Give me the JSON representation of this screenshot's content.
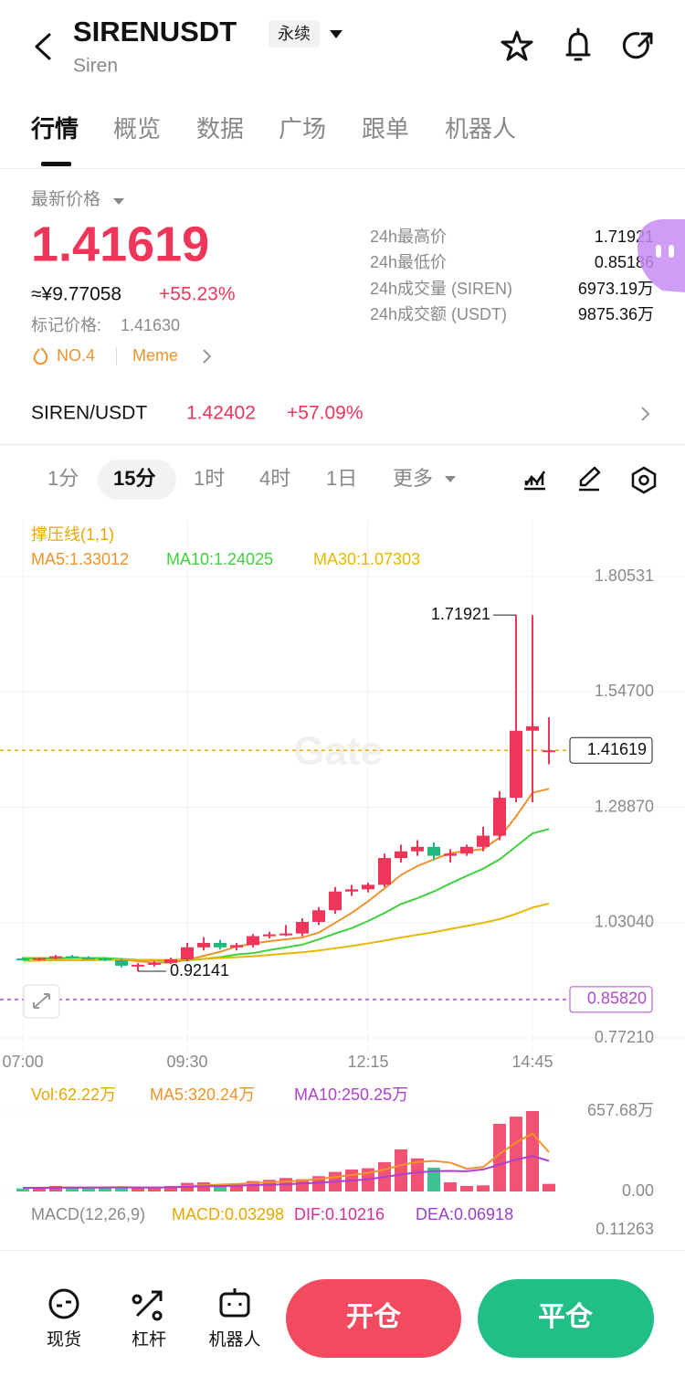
{
  "header": {
    "title": "SIRENUSDT",
    "badge": "永续",
    "subtitle": "Siren"
  },
  "tabs": [
    "行情",
    "概览",
    "数据",
    "广场",
    "跟单",
    "机器人"
  ],
  "price": {
    "label": "最新价格",
    "last": "1.41619",
    "cny": "≈¥9.77058",
    "change": "+55.23%",
    "mark_label": "标记价格:",
    "mark": "1.41630",
    "rank": "NO.4",
    "tag": "Meme"
  },
  "stats": [
    {
      "label": "24h最高价",
      "value": "1.71921"
    },
    {
      "label": "24h最低价",
      "value": "0.85186"
    },
    {
      "label": "24h成交量 (SIREN)",
      "value": "6973.19万"
    },
    {
      "label": "24h成交额 (USDT)",
      "value": "9875.36万"
    }
  ],
  "spot": {
    "pair": "SIREN/USDT",
    "price": "1.42402",
    "change": "+57.09%"
  },
  "intervals": [
    "1分",
    "15分",
    "1时",
    "4时",
    "1日",
    "更多"
  ],
  "chart_data": {
    "type": "candlestick",
    "indicator": "撑压线(1,1)",
    "watermark": "Gate",
    "categories": [
      "07:00",
      null,
      null,
      null,
      null,
      null,
      null,
      null,
      null,
      null,
      "09:30",
      null,
      null,
      null,
      null,
      null,
      null,
      null,
      null,
      null,
      null,
      "12:15",
      null,
      null,
      null,
      null,
      null,
      null,
      null,
      null,
      null,
      "14:45",
      null
    ],
    "open": [
      0.95,
      0.948,
      0.951,
      0.955,
      0.952,
      0.95,
      0.946,
      0.934,
      0.936,
      0.94,
      0.948,
      0.975,
      0.985,
      0.975,
      0.98,
      1.0,
      1.004,
      1.006,
      1.032,
      1.058,
      1.1,
      1.105,
      1.115,
      1.175,
      1.19,
      1.2,
      1.18,
      1.185,
      1.2,
      1.225,
      1.31,
      1.46,
      1.415
    ],
    "high": [
      0.953,
      0.952,
      0.958,
      0.958,
      0.955,
      0.953,
      0.949,
      0.94,
      0.944,
      0.952,
      0.985,
      0.998,
      0.992,
      0.985,
      1.005,
      1.01,
      1.025,
      1.04,
      1.065,
      1.11,
      1.115,
      1.12,
      1.185,
      1.205,
      1.215,
      1.21,
      1.195,
      1.205,
      1.245,
      1.325,
      1.71921,
      1.71921,
      1.49
    ],
    "low": [
      0.946,
      0.945,
      0.948,
      0.95,
      0.948,
      0.944,
      0.93,
      0.92141,
      0.932,
      0.938,
      0.944,
      0.968,
      0.97,
      0.968,
      0.975,
      0.995,
      1.0,
      1.0,
      1.025,
      1.05,
      1.09,
      1.098,
      1.11,
      1.165,
      1.18,
      1.17,
      1.165,
      1.18,
      1.19,
      1.215,
      1.3,
      1.3,
      1.385
    ],
    "close": [
      0.948,
      0.951,
      0.955,
      0.952,
      0.95,
      0.946,
      0.934,
      0.936,
      0.94,
      0.948,
      0.975,
      0.985,
      0.975,
      0.98,
      1.0,
      1.004,
      1.006,
      1.032,
      1.058,
      1.1,
      1.105,
      1.115,
      1.175,
      1.19,
      1.2,
      1.18,
      1.185,
      1.2,
      1.225,
      1.31,
      1.46,
      1.47,
      1.41619
    ],
    "up_color": "#f0355a",
    "down_color": "#1fb980",
    "series": [
      {
        "name": "MA5:1.33012",
        "color": "#f0932b",
        "values": [
          0.951,
          0.951,
          0.951,
          0.952,
          0.951,
          0.95,
          0.947,
          0.944,
          0.941,
          0.941,
          0.947,
          0.956,
          0.965,
          0.977,
          0.983,
          0.989,
          0.993,
          0.997,
          1.008,
          1.03,
          1.052,
          1.078,
          1.107,
          1.137,
          1.157,
          1.172,
          1.186,
          1.191,
          1.195,
          1.221,
          1.268,
          1.321,
          1.33
        ]
      },
      {
        "name": "MA10:1.24025",
        "color": "#3fd13f",
        "values": [
          0.95,
          0.95,
          0.95,
          0.951,
          0.951,
          0.951,
          0.949,
          0.947,
          0.946,
          0.945,
          0.946,
          0.949,
          0.953,
          0.959,
          0.962,
          0.969,
          0.975,
          0.981,
          0.993,
          1.006,
          1.018,
          1.034,
          1.052,
          1.072,
          1.085,
          1.1,
          1.118,
          1.135,
          1.151,
          1.172,
          1.201,
          1.23,
          1.24
        ]
      },
      {
        "name": "MA30:1.07303",
        "color": "#e6b800",
        "values": [
          0.945,
          0.945,
          0.946,
          0.946,
          0.946,
          0.947,
          0.947,
          0.947,
          0.947,
          0.947,
          0.948,
          0.949,
          0.951,
          0.953,
          0.955,
          0.958,
          0.961,
          0.964,
          0.968,
          0.973,
          0.978,
          0.984,
          0.99,
          0.997,
          1.003,
          1.009,
          1.016,
          1.023,
          1.03,
          1.038,
          1.05,
          1.064,
          1.073
        ]
      }
    ],
    "ylim": [
      0.7721,
      1.80531
    ],
    "yticks": [
      1.80531,
      {
        "value": 1.547,
        "label": "1.54700"
      },
      {
        "value": 1.2887,
        "label": "1.28870"
      },
      {
        "value": 1.0304,
        "label": "1.03040"
      },
      {
        "value": 0.7721,
        "label": "0.77210"
      }
    ],
    "grid": true,
    "annotations": [
      {
        "value": 1.71921,
        "label": "1.71921"
      },
      {
        "value": 0.92141,
        "label": "0.92141"
      }
    ],
    "price_lines": [
      {
        "value": 1.41619,
        "label": "1.41619",
        "color": "#e8b500"
      },
      {
        "value": 0.8582,
        "label": "0.85820",
        "color": "#b04ad0"
      }
    ]
  },
  "volume": {
    "label": "Vol:62.22万",
    "values": [
      25,
      30,
      45,
      35,
      30,
      28,
      40,
      30,
      32,
      45,
      70,
      75,
      60,
      55,
      85,
      95,
      110,
      100,
      125,
      160,
      180,
      190,
      240,
      344,
      270,
      195,
      75,
      45,
      50,
      553,
      612,
      657.68,
      62.22
    ],
    "series": [
      {
        "name": "MA5:320.24万",
        "color": "#f0932b",
        "values": [
          30,
          30,
          32,
          33,
          33,
          34,
          36,
          33,
          32,
          35,
          43,
          50,
          56,
          61,
          69,
          76,
          81,
          89,
          103,
          118,
          135,
          151,
          179,
          216,
          240,
          249,
          236,
          186,
          200,
          307,
          400,
          475,
          320.24
        ]
      },
      {
        "name": "MA10:250.25万",
        "color": "#b03fd0",
        "values": [
          30,
          30,
          31,
          32,
          32,
          32,
          33,
          33,
          33,
          34,
          38,
          42,
          44,
          47,
          52,
          55,
          59,
          65,
          72,
          80,
          89,
          100,
          118,
          139,
          155,
          166,
          168,
          165,
          180,
          220,
          260,
          290,
          250.25
        ]
      }
    ],
    "ylim": [
      0,
      657.68
    ],
    "yticks": [
      {
        "value": 657.68,
        "label": "657.68万"
      },
      {
        "value": 0,
        "label": "0.00"
      }
    ]
  },
  "macd": {
    "label": "MACD(12,26,9)",
    "macd": "MACD:0.03298",
    "dif": "DIF:0.10216",
    "dea": "DEA:0.06918",
    "top": "0.11263"
  },
  "bottom": {
    "nav": [
      "现货",
      "杠杆",
      "机器人"
    ],
    "open": "开仓",
    "close": "平仓"
  }
}
